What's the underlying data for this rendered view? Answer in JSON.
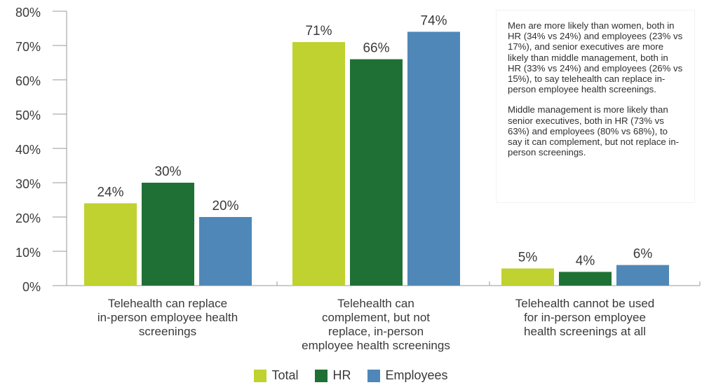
{
  "chart_data": {
    "type": "bar",
    "categories": [
      "Telehealth can replace in-person employee health screenings",
      "Telehealth can complement, but not replace, in-person employee health screenings",
      "Telehealth cannot be used for in-person employee health screenings at all"
    ],
    "category_lines": [
      [
        "Telehealth can replace",
        "in-person employee health",
        "screenings"
      ],
      [
        "Telehealth can",
        "complement, but not",
        "replace, in-person",
        "employee health screenings"
      ],
      [
        "Telehealth cannot be used",
        "for in-person employee",
        "health screenings at all"
      ]
    ],
    "series": [
      {
        "name": "Total",
        "values": [
          24,
          71,
          5
        ],
        "labels": [
          "24%",
          "71%",
          "5%"
        ],
        "color": "#bfd22f"
      },
      {
        "name": "HR",
        "values": [
          30,
          66,
          4
        ],
        "labels": [
          "30%",
          "66%",
          "4%"
        ],
        "color": "#1f7035"
      },
      {
        "name": "Employees",
        "values": [
          20,
          74,
          6
        ],
        "labels": [
          "20%",
          "74%",
          "6%"
        ],
        "color": "#4f88b8"
      }
    ],
    "ylim": [
      0,
      80
    ],
    "yticks": [
      "0%",
      "10%",
      "20%",
      "30%",
      "40%",
      "50%",
      "60%",
      "70%",
      "80%"
    ],
    "legend_position": "bottom",
    "grid": false
  },
  "note": {
    "paragraph1": "Men are more likely than women, both in HR (34% vs 24%) and employees (23% vs 17%), and senior executives are more likely than middle management, both in HR (33% vs 24%) and employees (26% vs 15%), to say telehealth can replace in-person employee health screenings.",
    "paragraph2": "Middle management is more likely than senior executives, both in HR (73% vs 63%) and employees (80% vs 68%), to say it can complement, but not replace in-person screenings."
  },
  "legend": {
    "items": [
      "Total",
      "HR",
      "Employees"
    ]
  }
}
